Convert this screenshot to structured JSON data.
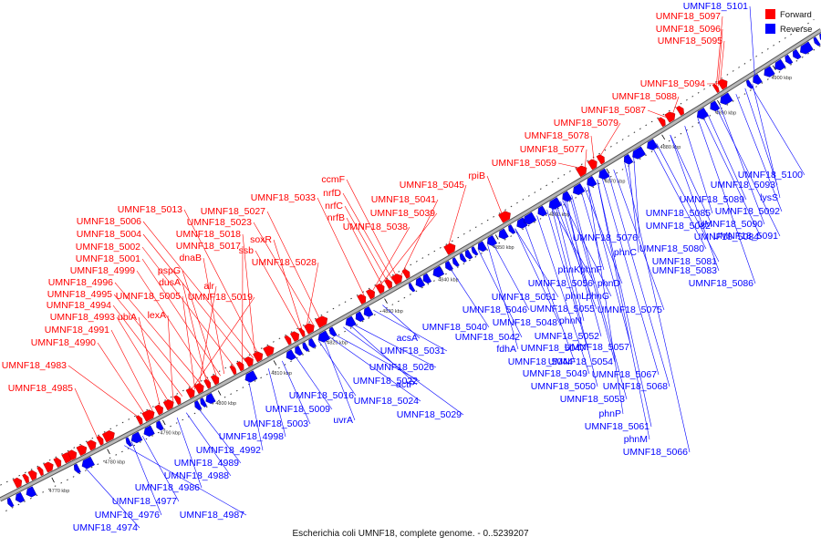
{
  "caption": "Escherichia coli UMNF18, complete genome. - 0..5239207",
  "legend": {
    "forward": "Forward",
    "reverse": "Reverse"
  },
  "colors": {
    "forward": "#ff0000",
    "reverse": "#0000ff",
    "axis": "#888888",
    "ruler": "#000000"
  },
  "ticks": [
    "4770 kbp",
    "4780 kbp",
    "4790 kbp",
    "4800 kbp",
    "4810 kbp",
    "4820 kbp",
    "4830 kbp",
    "4840 kbp",
    "4850 kbp",
    "4860 kbp",
    "4870 kbp",
    "4880 kbp",
    "4890 kbp",
    "4900 kbp"
  ],
  "forward_labels": [
    "UMNF18_5097",
    "UMNF18_5096",
    "UMNF18_5095",
    "UMNF18_5094",
    "UMNF18_5088",
    "UMNF18_5087",
    "UMNF18_5079",
    "UMNF18_5078",
    "UMNF18_5077",
    "UMNF18_5059",
    "rpiB",
    "UMNF18_5045",
    "UMNF18_5041",
    "ccmF",
    "nrfD",
    "nrfC",
    "nrfB",
    "UMNF18_5039",
    "UMNF18_5038",
    "UMNF18_5033",
    "UMNF18_5027",
    "UMNF18_5023",
    "UMNF18_5013",
    "UMNF18_5006",
    "UMNF18_5018",
    "UMNF18_5004",
    "UMNF18_5017",
    "UMNF18_5002",
    "dnaB",
    "UMNF18_5001",
    "pspG",
    "UMNF18_4999",
    "dusA",
    "UMNF18_4996",
    "alr",
    "UMNF18_4995",
    "UMNF18_5005",
    "UMNF18_5019",
    "UMNF18_4994",
    "lexA",
    "UMNF18_4993",
    "ubiA",
    "UMNF18_4991",
    "UMNF18_4990",
    "UMNF18_4983",
    "UMNF18_4985",
    "soxR",
    "ssb",
    "UMNF18_5028"
  ],
  "reverse_labels": [
    "UMNF18_5101",
    "UMNF18_5100",
    "UMNF18_5093",
    "UMNF18_5089",
    "lysS",
    "UMNF18_5092",
    "UMNF18_5085",
    "UMNF18_5090",
    "UMNF18_5082",
    "UMNF18_5084",
    "UMNF18_5091",
    "UMNF18_5076",
    "UMNF18_5080",
    "phnC",
    "UMNF18_5081",
    "phnK",
    "phnF",
    "UMNF18_5083",
    "phnD",
    "UMNF18_5086",
    "UMNF18_5056",
    "phnL",
    "phnG",
    "UMNF18_5051",
    "UMNF18_5055",
    "UMNF18_5075",
    "UMNF18_5046",
    "phnN",
    "UMNF18_5048",
    "UMNF18_5052",
    "UMNF18_5040",
    "UMNF18_5042",
    "UMNF18_5057",
    "fdhA",
    "UMNF18_5047",
    "UMNF18_5044",
    "UMNF18_5054",
    "UMNF18_5049",
    "UMNF18_5067",
    "UMNF18_5050",
    "UMNF18_5068",
    "UMNF18_5053",
    "phnP",
    "UMNF18_5061",
    "phnM",
    "UMNF18_5066",
    "acsA",
    "UMNF18_5031",
    "UMNF18_5026",
    "UMNF18_5022",
    "actP",
    "UMNF18_5016",
    "UMNF18_5024",
    "UMNF18_5009",
    "uvrA",
    "UMNF18_5029",
    "UMNF18_5003",
    "UMNF18_4998",
    "UMNF18_4992",
    "UMNF18_4989",
    "UMNF18_4988",
    "UMNF18_4986",
    "UMNF18_4977",
    "UMNF18_4976",
    "UMNF18_4987",
    "UMNF18_4974"
  ]
}
